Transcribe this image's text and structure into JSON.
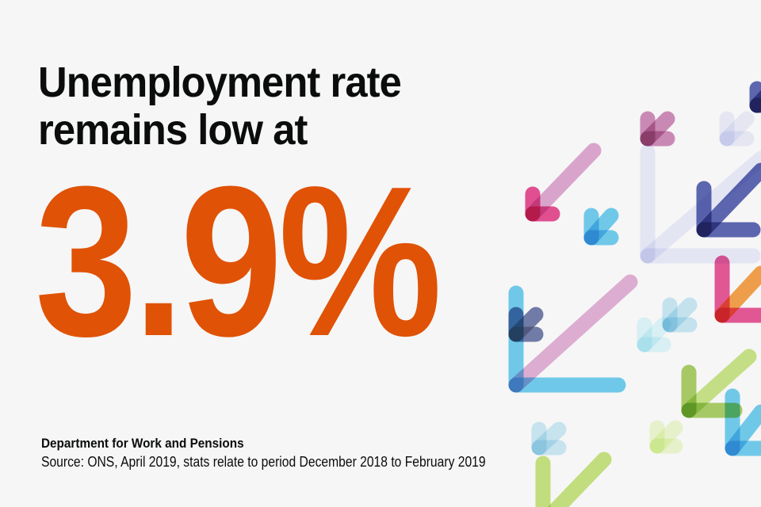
{
  "headline": {
    "line1": "Unemployment rate",
    "line2": "remains low at"
  },
  "figure": "3.9%",
  "footer": {
    "organisation": "Department for Work and Pensions",
    "source": "Source: ONS, April 2019, stats relate to period December 2018 to February 2019"
  },
  "colors": {
    "accent": "#e05206",
    "text": "#0b0c0c",
    "background": "#f6f6f6",
    "arrow_palette": [
      "#e0a6d2",
      "#e8488f",
      "#c97ab0",
      "#5bc8f0",
      "#eceefb",
      "#4d5aad",
      "#f79a38",
      "#a3cc5a",
      "#c5e47c",
      "#b9e4f4",
      "#eefad0",
      "#3a4a8a"
    ]
  },
  "decoration": "arrow-icon pattern pointing down-left"
}
